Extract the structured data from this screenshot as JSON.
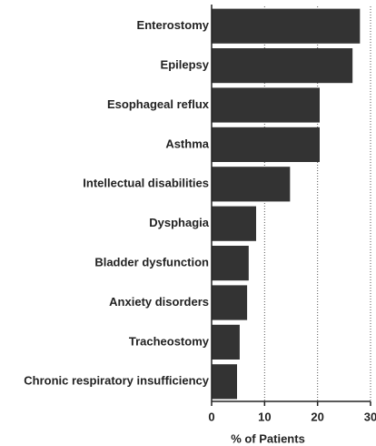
{
  "chart_data": {
    "type": "barh",
    "xlabel": "% of Patients",
    "categories": [
      "Enterostomy",
      "Epilepsy",
      "Esophageal reflux",
      "Asthma",
      "Intellectual disabilities",
      "Dysphagia",
      "Bladder dysfunction",
      "Anxiety disorders",
      "Tracheostomy",
      "Chronic respiratory insufficiency"
    ],
    "values": [
      28.0,
      26.6,
      20.4,
      20.4,
      14.8,
      8.4,
      7.0,
      6.7,
      5.3,
      4.8
    ],
    "color": "#333333",
    "xlim": [
      0,
      30
    ],
    "xticks": [
      0,
      10,
      20,
      30
    ],
    "grid": true
  }
}
